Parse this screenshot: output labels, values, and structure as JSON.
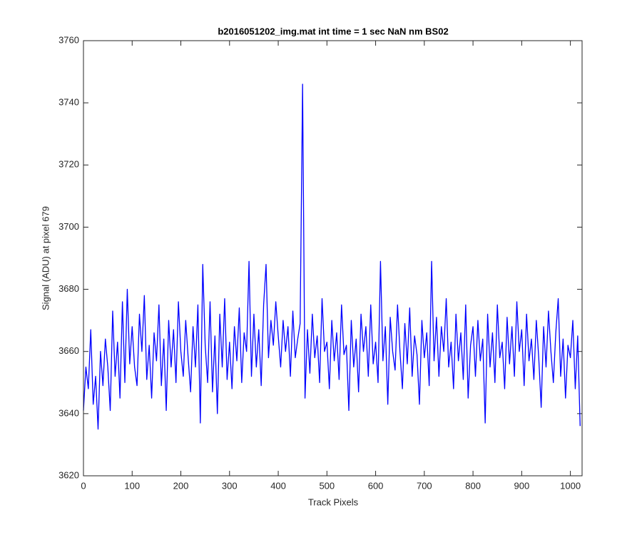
{
  "chart_data": {
    "type": "line",
    "title": "b2016051202_img.mat int time = 1 sec  NaN nm BS02",
    "xlabel": "Track Pixels",
    "ylabel": "Signal (ADU) at pixel 679",
    "xlim": [
      0,
      1024
    ],
    "ylim": [
      3620,
      3760
    ],
    "xticks": [
      0,
      100,
      200,
      300,
      400,
      500,
      600,
      700,
      800,
      900,
      1000
    ],
    "yticks": [
      3620,
      3640,
      3660,
      3680,
      3700,
      3720,
      3740,
      3760
    ],
    "grid": false,
    "series": [
      {
        "color": "#0000ff",
        "x": [
          0,
          5,
          10,
          15,
          20,
          25,
          30,
          35,
          40,
          45,
          50,
          55,
          60,
          65,
          70,
          75,
          80,
          85,
          90,
          95,
          100,
          105,
          110,
          115,
          120,
          125,
          130,
          135,
          140,
          145,
          150,
          155,
          160,
          165,
          170,
          175,
          180,
          185,
          190,
          195,
          200,
          205,
          210,
          215,
          220,
          225,
          230,
          235,
          240,
          245,
          250,
          255,
          260,
          265,
          270,
          275,
          280,
          285,
          290,
          295,
          300,
          305,
          310,
          315,
          320,
          325,
          330,
          335,
          340,
          345,
          350,
          355,
          360,
          365,
          370,
          375,
          380,
          385,
          390,
          395,
          400,
          405,
          410,
          415,
          420,
          425,
          430,
          435,
          440,
          445,
          450,
          455,
          460,
          465,
          470,
          475,
          480,
          485,
          490,
          495,
          500,
          505,
          510,
          515,
          520,
          525,
          530,
          535,
          540,
          545,
          550,
          555,
          560,
          565,
          570,
          575,
          580,
          585,
          590,
          595,
          600,
          605,
          610,
          615,
          620,
          625,
          630,
          635,
          640,
          645,
          650,
          655,
          660,
          665,
          670,
          675,
          680,
          685,
          690,
          695,
          700,
          705,
          710,
          715,
          720,
          725,
          730,
          735,
          740,
          745,
          750,
          755,
          760,
          765,
          770,
          775,
          780,
          785,
          790,
          795,
          800,
          805,
          810,
          815,
          820,
          825,
          830,
          835,
          840,
          845,
          850,
          855,
          860,
          865,
          870,
          875,
          880,
          885,
          890,
          895,
          900,
          905,
          910,
          915,
          920,
          925,
          930,
          935,
          940,
          945,
          950,
          955,
          960,
          965,
          970,
          975,
          980,
          985,
          990,
          995,
          1000,
          1005,
          1010,
          1015,
          1020
        ],
        "values": [
          3641,
          3655,
          3648,
          3667,
          3643,
          3652,
          3635,
          3660,
          3649,
          3664,
          3655,
          3641,
          3673,
          3652,
          3663,
          3645,
          3676,
          3650,
          3680,
          3656,
          3668,
          3655,
          3649,
          3672,
          3660,
          3678,
          3651,
          3662,
          3645,
          3666,
          3657,
          3675,
          3649,
          3664,
          3641,
          3670,
          3655,
          3667,
          3650,
          3676,
          3660,
          3652,
          3670,
          3658,
          3647,
          3668,
          3655,
          3675,
          3637,
          3688,
          3662,
          3650,
          3676,
          3647,
          3665,
          3640,
          3672,
          3655,
          3677,
          3651,
          3663,
          3648,
          3668,
          3657,
          3674,
          3650,
          3666,
          3660,
          3689,
          3652,
          3672,
          3655,
          3667,
          3649,
          3675,
          3688,
          3658,
          3670,
          3662,
          3676,
          3665,
          3655,
          3670,
          3660,
          3668,
          3652,
          3673,
          3658,
          3664,
          3669,
          3746,
          3645,
          3667,
          3653,
          3672,
          3658,
          3665,
          3650,
          3677,
          3660,
          3663,
          3648,
          3670,
          3657,
          3666,
          3651,
          3675,
          3659,
          3662,
          3641,
          3670,
          3655,
          3664,
          3647,
          3672,
          3660,
          3668,
          3652,
          3675,
          3656,
          3663,
          3650,
          3689,
          3657,
          3668,
          3643,
          3671,
          3660,
          3654,
          3675,
          3660,
          3648,
          3669,
          3656,
          3674,
          3652,
          3665,
          3659,
          3643,
          3670,
          3658,
          3666,
          3649,
          3689,
          3657,
          3671,
          3652,
          3668,
          3660,
          3677,
          3655,
          3663,
          3648,
          3672,
          3657,
          3666,
          3651,
          3675,
          3645,
          3662,
          3668,
          3652,
          3670,
          3657,
          3664,
          3637,
          3672,
          3655,
          3666,
          3650,
          3675,
          3658,
          3663,
          3648,
          3671,
          3656,
          3668,
          3652,
          3676,
          3660,
          3667,
          3649,
          3672,
          3657,
          3664,
          3651,
          3670,
          3658,
          3642,
          3668,
          3655,
          3673,
          3660,
          3650,
          3666,
          3677,
          3652,
          3664,
          3645,
          3662,
          3658,
          3670,
          3648,
          3665,
          3636
        ]
      }
    ]
  }
}
